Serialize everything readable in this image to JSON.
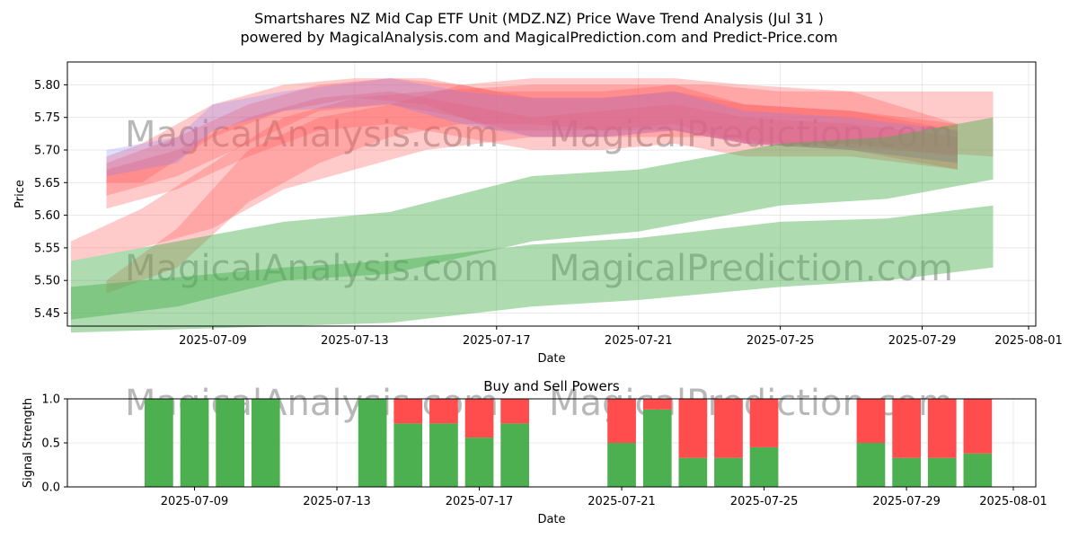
{
  "title_line1": "Smartshares NZ Mid Cap ETF Unit (MDZ.NZ) Price Wave Trend Analysis (Jul 31 )",
  "title_line2": "powered by MagicalAnalysis.com and MagicalPrediction.com and Predict-Price.com",
  "watermarks": [
    "MagicalAnalysis.com",
    "MagicalPrediction.com"
  ],
  "colors": {
    "green": "#4caf50",
    "red": "#ff4c4c",
    "green_band": "#4caf50",
    "red_band": "#ff5a5a",
    "blue_band": "#7b7bff"
  },
  "chart_data": [
    {
      "type": "area",
      "xlabel": "Date",
      "ylabel": "Price",
      "ylim": [
        5.43,
        5.835
      ],
      "xlim": [
        "2025-07-05",
        "2025-08-01"
      ],
      "grid": true,
      "x_ticks": [
        "2025-07-09",
        "2025-07-13",
        "2025-07-17",
        "2025-07-21",
        "2025-07-25",
        "2025-07-29",
        "2025-08-01"
      ],
      "y_ticks": [
        "5.45",
        "5.50",
        "5.55",
        "5.60",
        "5.65",
        "5.70",
        "5.75",
        "5.80"
      ],
      "series": [
        {
          "color": "red",
          "x": [
            "2025-07-05",
            "2025-07-07",
            "2025-07-09",
            "2025-07-11",
            "2025-07-13",
            "2025-07-15",
            "2025-07-18",
            "2025-07-21",
            "2025-07-23",
            "2025-07-25",
            "2025-07-28",
            "2025-07-31"
          ],
          "upper": [
            5.56,
            5.61,
            5.68,
            5.75,
            5.78,
            5.79,
            5.8,
            5.8,
            5.8,
            5.79,
            5.79,
            5.79
          ],
          "lower": [
            5.53,
            5.55,
            5.58,
            5.64,
            5.67,
            5.7,
            5.72,
            5.72,
            5.72,
            5.71,
            5.7,
            5.69
          ]
        },
        {
          "color": "red",
          "x": [
            "2025-07-06",
            "2025-07-08",
            "2025-07-10",
            "2025-07-12",
            "2025-07-14",
            "2025-07-16",
            "2025-07-18",
            "2025-07-20",
            "2025-07-22",
            "2025-07-24",
            "2025-07-27",
            "2025-07-30"
          ],
          "upper": [
            5.5,
            5.58,
            5.7,
            5.75,
            5.77,
            5.8,
            5.81,
            5.81,
            5.81,
            5.8,
            5.79,
            5.74
          ],
          "lower": [
            5.48,
            5.52,
            5.62,
            5.68,
            5.72,
            5.74,
            5.74,
            5.73,
            5.73,
            5.71,
            5.7,
            5.67
          ]
        },
        {
          "color": "red",
          "x": [
            "2025-07-06",
            "2025-07-07",
            "2025-07-09",
            "2025-07-11",
            "2025-07-13",
            "2025-07-15",
            "2025-07-17",
            "2025-07-20",
            "2025-07-22",
            "2025-07-24",
            "2025-07-27",
            "2025-07-30"
          ],
          "upper": [
            5.69,
            5.71,
            5.77,
            5.8,
            5.81,
            5.81,
            5.79,
            5.79,
            5.8,
            5.77,
            5.76,
            5.74
          ],
          "lower": [
            5.65,
            5.65,
            5.72,
            5.76,
            5.78,
            5.77,
            5.73,
            5.73,
            5.74,
            5.71,
            5.71,
            5.69
          ]
        },
        {
          "color": "red",
          "x": [
            "2025-07-06",
            "2025-07-08",
            "2025-07-10",
            "2025-07-12",
            "2025-07-14",
            "2025-07-16",
            "2025-07-18",
            "2025-07-20",
            "2025-07-22",
            "2025-07-24",
            "2025-07-27",
            "2025-07-30"
          ],
          "upper": [
            5.68,
            5.72,
            5.77,
            5.8,
            5.81,
            5.8,
            5.78,
            5.78,
            5.79,
            5.77,
            5.76,
            5.73
          ],
          "lower": [
            5.63,
            5.66,
            5.71,
            5.76,
            5.77,
            5.75,
            5.72,
            5.72,
            5.73,
            5.71,
            5.7,
            5.68
          ]
        },
        {
          "color": "red",
          "x": [
            "2025-07-06",
            "2025-07-08",
            "2025-07-10",
            "2025-07-12",
            "2025-07-14",
            "2025-07-16",
            "2025-07-18",
            "2025-07-20",
            "2025-07-22",
            "2025-07-24",
            "2025-07-27",
            "2025-07-30"
          ],
          "upper": [
            5.67,
            5.7,
            5.75,
            5.78,
            5.79,
            5.77,
            5.75,
            5.76,
            5.77,
            5.75,
            5.74,
            5.72
          ],
          "lower": [
            5.61,
            5.64,
            5.69,
            5.73,
            5.74,
            5.72,
            5.7,
            5.7,
            5.71,
            5.69,
            5.69,
            5.67
          ]
        },
        {
          "color": "blue",
          "x": [
            "2025-07-06",
            "2025-07-08",
            "2025-07-09",
            "2025-07-11",
            "2025-07-14",
            "2025-07-16",
            "2025-07-18",
            "2025-07-20",
            "2025-07-22",
            "2025-07-24",
            "2025-07-27",
            "2025-07-30"
          ],
          "upper": [
            5.7,
            5.72,
            5.77,
            5.79,
            5.81,
            5.79,
            5.78,
            5.78,
            5.79,
            5.76,
            5.75,
            5.73
          ],
          "lower": [
            5.66,
            5.68,
            5.73,
            5.76,
            5.77,
            5.74,
            5.72,
            5.72,
            5.73,
            5.71,
            5.7,
            5.68
          ]
        },
        {
          "color": "green",
          "x": [
            "2025-07-05",
            "2025-07-08",
            "2025-07-11",
            "2025-07-14",
            "2025-07-18",
            "2025-07-21",
            "2025-07-25",
            "2025-07-28",
            "2025-07-31"
          ],
          "upper": [
            5.53,
            5.56,
            5.59,
            5.605,
            5.66,
            5.67,
            5.71,
            5.72,
            5.75
          ],
          "lower": [
            5.44,
            5.46,
            5.5,
            5.51,
            5.56,
            5.575,
            5.615,
            5.625,
            5.655
          ]
        },
        {
          "color": "green",
          "x": [
            "2025-07-05",
            "2025-07-08",
            "2025-07-11",
            "2025-07-14",
            "2025-07-18",
            "2025-07-21",
            "2025-07-25",
            "2025-07-28",
            "2025-07-31"
          ],
          "upper": [
            5.49,
            5.505,
            5.52,
            5.53,
            5.555,
            5.565,
            5.59,
            5.595,
            5.615
          ],
          "lower": [
            5.42,
            5.425,
            5.43,
            5.435,
            5.46,
            5.47,
            5.49,
            5.5,
            5.52
          ]
        }
      ]
    },
    {
      "type": "bar",
      "title": "Buy and Sell Powers",
      "xlabel": "Date",
      "ylabel": "Signal Strength",
      "ylim": [
        0,
        1.0
      ],
      "grid": true,
      "x_ticks": [
        "2025-07-09",
        "2025-07-13",
        "2025-07-17",
        "2025-07-21",
        "2025-07-25",
        "2025-07-29",
        "2025-08-01"
      ],
      "y_ticks": [
        "0.0",
        "0.5",
        "1.0"
      ],
      "categories": [
        "2025-07-08",
        "2025-07-09",
        "2025-07-10",
        "2025-07-11",
        "2025-07-14",
        "2025-07-15",
        "2025-07-16",
        "2025-07-17",
        "2025-07-18",
        "2025-07-21",
        "2025-07-22",
        "2025-07-23",
        "2025-07-24",
        "2025-07-25",
        "2025-07-28",
        "2025-07-29",
        "2025-07-30",
        "2025-07-31"
      ],
      "series": [
        {
          "color": "green",
          "values": [
            1.0,
            1.0,
            1.0,
            1.0,
            1.0,
            0.72,
            0.72,
            0.56,
            0.72,
            0.5,
            0.88,
            0.33,
            0.33,
            0.45,
            0.5,
            0.33,
            0.33,
            0.38
          ]
        },
        {
          "color": "red",
          "values": [
            0.0,
            0.0,
            0.0,
            0.0,
            0.0,
            0.28,
            0.28,
            0.44,
            0.28,
            0.5,
            0.12,
            0.67,
            0.67,
            0.55,
            0.5,
            0.67,
            0.67,
            0.62
          ]
        }
      ]
    }
  ]
}
